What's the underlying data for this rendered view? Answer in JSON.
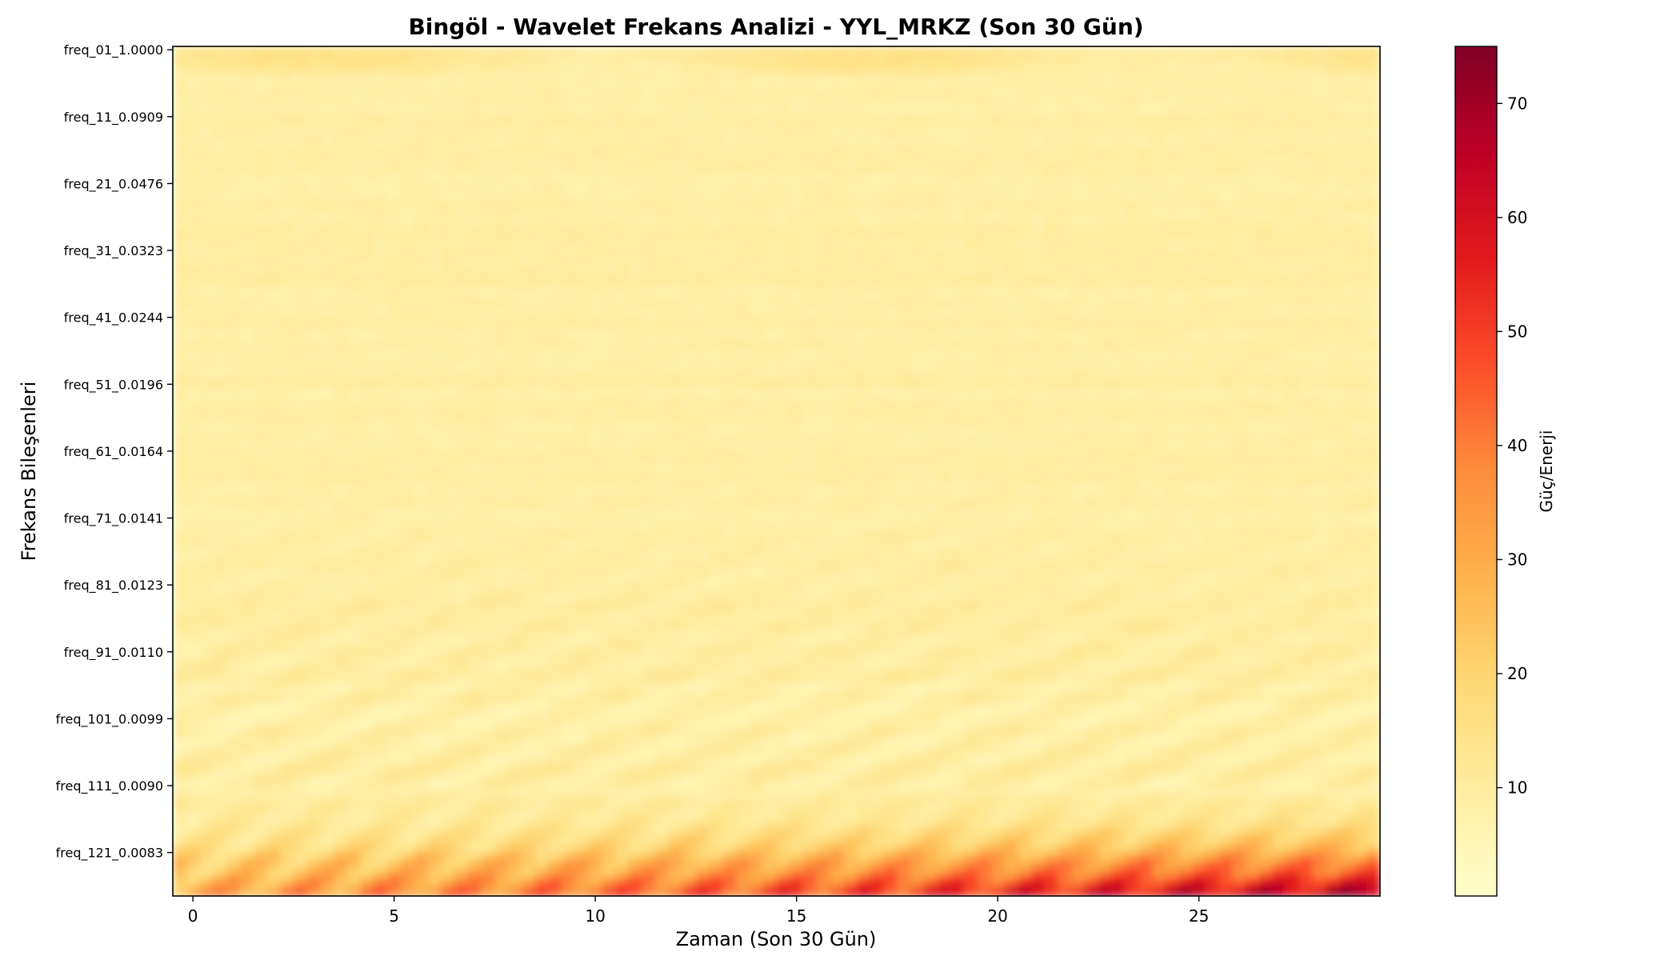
{
  "chart_data": {
    "type": "heatmap",
    "title": "Bingöl - Wavelet Frekans Analizi - YYL_MRKZ (Son 30 Gün)",
    "xlabel": "Zaman (Son 30 Gün)",
    "ylabel": "Frekans Bileşenleri",
    "x_ticks": [
      0,
      5,
      10,
      15,
      20,
      25
    ],
    "x_range": [
      -0.5,
      29.5
    ],
    "y_tick_labels": [
      "freq_01_1.0000",
      "freq_11_0.0909",
      "freq_21_0.0476",
      "freq_31_0.0323",
      "freq_41_0.0244",
      "freq_51_0.0196",
      "freq_61_0.0164",
      "freq_71_0.0141",
      "freq_81_0.0123",
      "freq_91_0.0110",
      "freq_101_0.0099",
      "freq_111_0.0090",
      "freq_121_0.0083"
    ],
    "y_tick_indices": [
      0,
      10,
      20,
      30,
      40,
      50,
      60,
      70,
      80,
      90,
      100,
      110,
      120
    ],
    "y_range": [
      -0.5,
      126.5
    ],
    "colorbar": {
      "label": "Güç/Enerji",
      "ticks": [
        10,
        20,
        30,
        40,
        50,
        60,
        70
      ],
      "range": [
        0.5,
        75
      ],
      "colormap": "YlOrRd"
    },
    "grid": false
  }
}
